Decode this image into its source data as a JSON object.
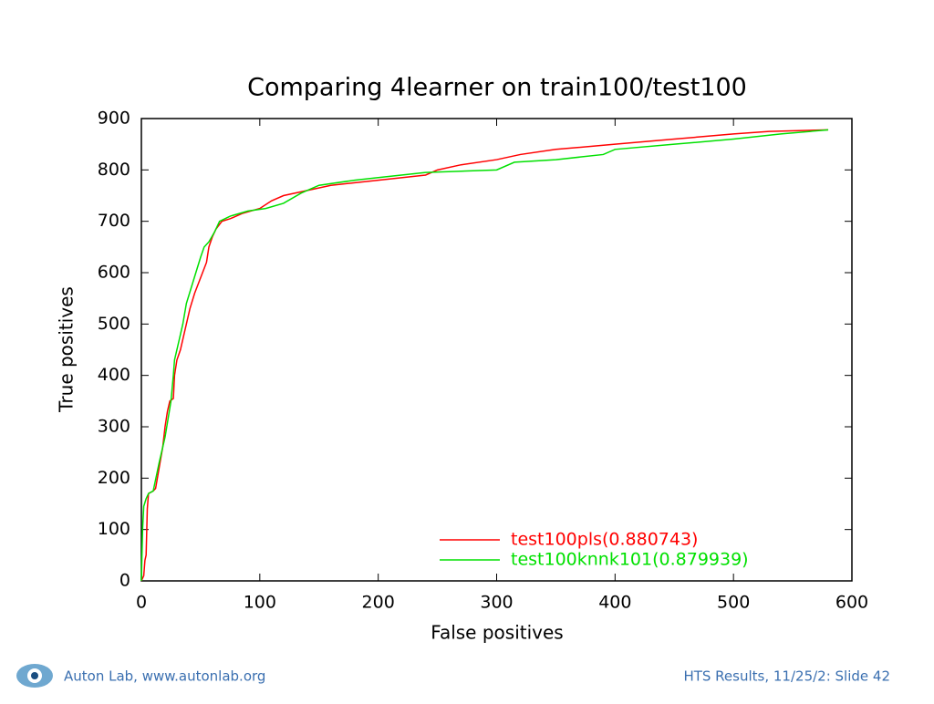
{
  "chart_data": {
    "type": "line",
    "title": "Comparing 4learner on train100/test100",
    "x_label": "False positives",
    "y_label": "True positives",
    "xlim": [
      0,
      600
    ],
    "xticks": [
      0,
      100,
      200,
      300,
      400,
      500,
      600
    ],
    "ylim": [
      0,
      900
    ],
    "yticks": [
      0,
      100,
      200,
      300,
      400,
      500,
      600,
      700,
      800,
      900
    ],
    "legend": "lower right",
    "series": [
      {
        "name": "test100pls(0.880743)",
        "color": "#ff0000",
        "x": [
          0,
          2,
          3,
          4,
          5,
          6,
          10,
          12,
          15,
          18,
          20,
          22,
          24,
          27,
          28,
          30,
          33,
          36,
          38,
          41,
          45,
          50,
          55,
          57,
          60,
          63,
          68,
          75,
          85,
          100,
          110,
          120,
          140,
          160,
          200,
          240,
          250,
          270,
          300,
          320,
          350,
          400,
          450,
          500,
          530,
          580
        ],
        "values": [
          0,
          10,
          40,
          50,
          140,
          170,
          175,
          180,
          220,
          260,
          300,
          330,
          350,
          355,
          400,
          430,
          450,
          480,
          500,
          530,
          560,
          590,
          620,
          650,
          670,
          685,
          700,
          705,
          715,
          725,
          740,
          750,
          760,
          770,
          780,
          790,
          800,
          810,
          820,
          830,
          840,
          850,
          860,
          870,
          875,
          878
        ]
      },
      {
        "name": "test100knnk101(0.879939)",
        "color": "#00e000",
        "x": [
          0,
          1,
          2,
          4,
          6,
          10,
          15,
          20,
          25,
          27,
          28,
          32,
          35,
          38,
          42,
          46,
          50,
          53,
          57,
          62,
          66,
          75,
          90,
          105,
          120,
          135,
          150,
          180,
          200,
          240,
          300,
          315,
          350,
          390,
          400,
          450,
          500,
          540,
          580
        ],
        "values": [
          0,
          100,
          145,
          160,
          170,
          175,
          230,
          280,
          350,
          400,
          430,
          470,
          500,
          540,
          570,
          600,
          630,
          650,
          660,
          680,
          700,
          710,
          720,
          725,
          735,
          755,
          770,
          780,
          785,
          795,
          800,
          815,
          820,
          830,
          840,
          850,
          860,
          870,
          878
        ]
      }
    ]
  },
  "footer": {
    "left": "Auton Lab, www.autonlab.org",
    "right": "HTS Results, 11/25/2: Slide 42"
  }
}
